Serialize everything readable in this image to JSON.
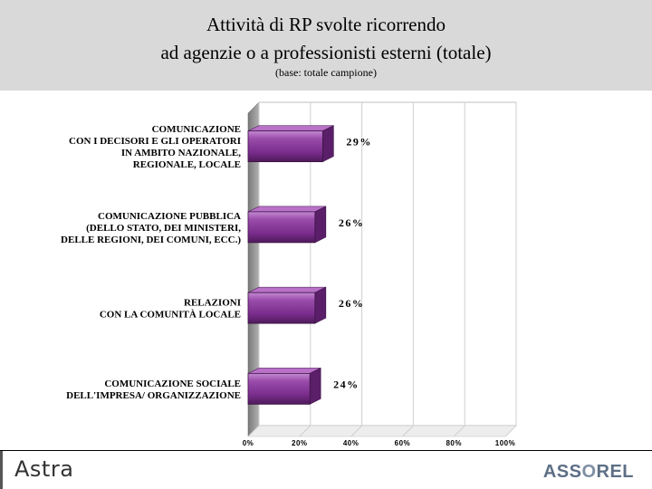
{
  "header": {
    "title_line1": "Attività di RP svolte ricorrendo",
    "title_line2": "ad agenzie o a professionisti esterni (totale)",
    "subtitle": "(base: totale campione)"
  },
  "chart_data": {
    "type": "bar",
    "orientation": "horizontal",
    "title": "Attività di RP svolte ricorrendo ad agenzie o a professionisti esterni (totale)",
    "categories": [
      [
        "COMUNICAZIONE",
        "CON I DECISORI E GLI OPERATORI",
        "IN AMBITO NAZIONALE,",
        "REGIONALE, LOCALE"
      ],
      [
        "COMUNICAZIONE PUBBLICA",
        "(DELLO STATO, DEI MINISTERI,",
        "DELLE REGIONI, DEI COMUNI, ECC.)"
      ],
      [
        "RELAZIONI",
        "CON LA COMUNITÀ LOCALE"
      ],
      [
        "COMUNICAZIONE SOCIALE",
        "DELL'IMPRESA/ ORGANIZZAZIONE"
      ]
    ],
    "values": [
      29,
      26,
      26,
      24
    ],
    "value_labels": [
      "29%",
      "26%",
      "26%",
      "24%"
    ],
    "xlim": [
      0,
      100
    ],
    "xticks": [
      "0%",
      "20%",
      "40%",
      "60%",
      "80%",
      "100%"
    ],
    "grid": true,
    "bar_color": "#8e3fa0"
  },
  "footer": {
    "logo_left": "Astra",
    "logo_right_a": "ASS",
    "logo_right_o": "O",
    "logo_right_b": "REL"
  }
}
